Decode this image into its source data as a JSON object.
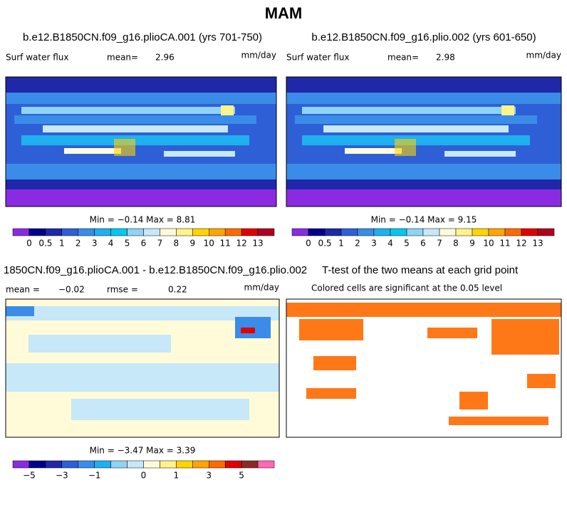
{
  "title": "MAM",
  "panels": [
    {
      "title": "b.e12.B1850CN.f09_g16.plioCA.001 (yrs 701-750)",
      "variable": "Surf water flux",
      "stat1_label": "mean=",
      "stat1": "2.96",
      "units": "mm/day",
      "min_max": "Min = −0.14 Max =   8.81"
    },
    {
      "title": "b.e12.B1850CN.f09_g16.plio.002 (yrs 601-650)",
      "variable": "Surf water flux",
      "stat1_label": "mean=",
      "stat1": "2.98",
      "units": "mm/day",
      "min_max": "Min = −0.14 Max =   9.15"
    },
    {
      "title": "1850CN.f09_g16.plioCA.001 - b.e12.B1850CN.f09_g16.plio.002",
      "stat1_label": "mean =",
      "stat1": "−0.02",
      "stat2_label": "rmse =",
      "stat2": "0.22",
      "units": "mm/day",
      "min_max": "Min = −3.47 Max =   3.39"
    },
    {
      "title": "T-test of the two means at each grid point",
      "subtitle": "Colored cells are significant at the 0.05 level"
    }
  ],
  "colorbars": [
    {
      "labels": [
        "0",
        "0.5",
        "1",
        "2",
        "3",
        "4",
        "5",
        "6",
        "7",
        "8",
        "9",
        "10",
        "11",
        "12",
        "13"
      ],
      "colors": [
        "#8a2be2",
        "#00008b",
        "#1e28a8",
        "#2f5fd6",
        "#3a8ce8",
        "#1fb0f0",
        "#00c8f0",
        "#8fd3f5",
        "#c6e8f8",
        "#fffbd9",
        "#fff38a",
        "#ffd400",
        "#ffa500",
        "#ff6a00",
        "#e00000",
        "#b00020",
        "#8b2a2a",
        "#ff69b4"
      ]
    },
    {
      "labels": [
        "−5",
        "−3",
        "−1",
        "0",
        "1",
        "3",
        "5"
      ],
      "colors": [
        "#8a2be2",
        "#00008b",
        "#1e28a8",
        "#2f5fd6",
        "#3a8ce8",
        "#1fb0f0",
        "#8fd3f5",
        "#c6e8f8",
        "#fffbd9",
        "#fff38a",
        "#ffd400",
        "#ffa500",
        "#ff6a00",
        "#e00000",
        "#8b2a2a",
        "#ff69b4"
      ]
    }
  ]
}
